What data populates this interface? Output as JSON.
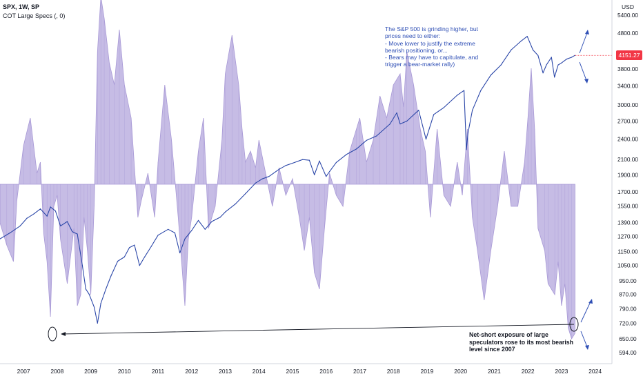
{
  "legend": {
    "main": "SPX, 1W, SP",
    "indicator": "COT Large Specs (, 0)"
  },
  "annotations": {
    "top": "The S&P 500 is grinding higher, but\nprices need to either:\n- Move lower to justify the extreme\nbearish positioning, or...\n- Bears may have to capitulate, and\ntrigger a bear-market rally)",
    "bottom": "Net-short exposure of large\nspeculators rose to its most bearish\nlevel since 2007"
  },
  "last_price": "4151.27",
  "colors": {
    "price_line": "#2a46a8",
    "cot_fill": "#b3a6dc",
    "cot_stroke": "#a899d6",
    "annotation_text": "#2f4fb5",
    "badge": "#f23645"
  },
  "chart_data": [
    {
      "type": "line",
      "series": [
        {
          "name": "SPX",
          "x": [
            2006.3,
            2006.6,
            2006.9,
            2007.1,
            2007.3,
            2007.5,
            2007.7,
            2007.8,
            2007.95,
            2008.1,
            2008.3,
            2008.45,
            2008.6,
            2008.75,
            2008.85,
            2008.95,
            2009.1,
            2009.2,
            2009.3,
            2009.45,
            2009.6,
            2009.8,
            2010.0,
            2010.15,
            2010.3,
            2010.45,
            2010.6,
            2010.8,
            2011.0,
            2011.3,
            2011.5,
            2011.65,
            2011.8,
            2012.0,
            2012.2,
            2012.4,
            2012.6,
            2012.85,
            2013.0,
            2013.3,
            2013.6,
            2013.9,
            2014.1,
            2014.3,
            2014.6,
            2014.8,
            2015.0,
            2015.3,
            2015.5,
            2015.65,
            2015.8,
            2016.0,
            2016.1,
            2016.3,
            2016.6,
            2016.9,
            2017.2,
            2017.5,
            2017.9,
            2018.1,
            2018.2,
            2018.4,
            2018.75,
            2018.97,
            2019.2,
            2019.5,
            2019.9,
            2020.1,
            2020.17,
            2020.22,
            2020.35,
            2020.6,
            2020.9,
            2021.2,
            2021.5,
            2021.8,
            2021.98,
            2022.15,
            2022.3,
            2022.45,
            2022.55,
            2022.7,
            2022.79,
            2022.9,
            2023.0,
            2023.15,
            2023.3,
            2023.4
          ],
          "values": [
            1250,
            1300,
            1360,
            1430,
            1470,
            1520,
            1450,
            1540,
            1500,
            1360,
            1400,
            1310,
            1290,
            1050,
            900,
            870,
            800,
            720,
            820,
            900,
            980,
            1080,
            1110,
            1180,
            1200,
            1050,
            1110,
            1190,
            1280,
            1330,
            1300,
            1140,
            1250,
            1320,
            1410,
            1330,
            1400,
            1440,
            1490,
            1570,
            1680,
            1800,
            1850,
            1880,
            1970,
            2020,
            2050,
            2100,
            2090,
            1900,
            2080,
            1880,
            1940,
            2060,
            2170,
            2250,
            2380,
            2450,
            2650,
            2850,
            2650,
            2700,
            2900,
            2400,
            2820,
            2950,
            3200,
            3300,
            2240,
            2500,
            2900,
            3300,
            3650,
            3900,
            4300,
            4560,
            4700,
            4300,
            4150,
            3700,
            3900,
            4100,
            3600,
            3900,
            3950,
            4050,
            4100,
            4151.27
          ],
          "ylim": [
            570,
            5700
          ],
          "scale": "log"
        }
      ],
      "y_ticks": [
        "5400.00",
        "4800.00",
        "4151.27",
        "3800.00",
        "3400.00",
        "3000.00",
        "2700.00",
        "2400.00",
        "2100.00",
        "1900.00",
        "1700.00",
        "1550.00",
        "1390.00",
        "1270.00",
        "1150.00",
        "1050.00",
        "950.00",
        "870.00",
        "790.00",
        "720.00",
        "650.00",
        "594.00"
      ],
      "y_unit": "USD",
      "x_ticks": [
        "2007",
        "2008",
        "2009",
        "2010",
        "2011",
        "2012",
        "2013",
        "2014",
        "2015",
        "2016",
        "2017",
        "2018",
        "2019",
        "2020",
        "2021",
        "2022",
        "2023",
        "2024"
      ],
      "xlim": [
        2006.3,
        2024.5
      ]
    },
    {
      "type": "area",
      "series": [
        {
          "name": "COT Large Specs",
          "x": [
            2006.3,
            2006.5,
            2006.7,
            2006.8,
            2007.0,
            2007.2,
            2007.4,
            2007.5,
            2007.6,
            2007.7,
            2007.8,
            2007.9,
            2008.0,
            2008.1,
            2008.3,
            2008.5,
            2008.6,
            2008.7,
            2008.8,
            2008.9,
            2009.0,
            2009.1,
            2009.2,
            2009.3,
            2009.4,
            2009.55,
            2009.7,
            2009.85,
            2010.0,
            2010.2,
            2010.4,
            2010.5,
            2010.7,
            2010.9,
            2011.0,
            2011.2,
            2011.4,
            2011.6,
            2011.7,
            2011.8,
            2011.9,
            2012.0,
            2012.2,
            2012.35,
            2012.5,
            2012.7,
            2012.9,
            2013.0,
            2013.2,
            2013.4,
            2013.5,
            2013.6,
            2013.75,
            2013.9,
            2014.0,
            2014.2,
            2014.4,
            2014.6,
            2014.8,
            2015.0,
            2015.2,
            2015.35,
            2015.5,
            2015.65,
            2015.8,
            2015.95,
            2016.1,
            2016.3,
            2016.5,
            2016.7,
            2016.9,
            2017.0,
            2017.2,
            2017.4,
            2017.6,
            2017.8,
            2018.0,
            2018.2,
            2018.3,
            2018.4,
            2018.6,
            2018.8,
            2018.95,
            2019.1,
            2019.3,
            2019.5,
            2019.7,
            2019.9,
            2020.05,
            2020.2,
            2020.35,
            2020.5,
            2020.7,
            2020.9,
            2021.1,
            2021.3,
            2021.5,
            2021.7,
            2021.9,
            2022.0,
            2022.1,
            2022.2,
            2022.3,
            2022.5,
            2022.6,
            2022.8,
            2022.9,
            2023.0,
            2023.1,
            2023.2,
            2023.3,
            2023.4
          ],
          "values": [
            -0.35,
            -0.55,
            -0.7,
            -0.15,
            0.35,
            0.6,
            0.1,
            0.2,
            -0.45,
            -0.7,
            -1.2,
            -0.2,
            -0.1,
            -0.5,
            -0.9,
            -0.4,
            -1.1,
            -1.0,
            -0.3,
            -0.6,
            -1.0,
            -0.2,
            1.2,
            1.7,
            1.5,
            1.1,
            0.9,
            1.4,
            0.9,
            0.6,
            -0.3,
            -0.15,
            0.1,
            -0.3,
            0.2,
            0.9,
            0.4,
            -0.3,
            -0.7,
            -1.1,
            -0.5,
            -0.3,
            0.3,
            0.6,
            -0.4,
            -0.2,
            0.4,
            1.0,
            1.35,
            0.9,
            0.5,
            0.2,
            0.3,
            0.15,
            0.4,
            0.1,
            -0.2,
            0.15,
            -0.1,
            0.05,
            -0.3,
            -0.6,
            -0.3,
            -0.8,
            -0.95,
            -0.4,
            0.1,
            -0.1,
            -0.2,
            0.3,
            0.5,
            0.6,
            0.2,
            0.4,
            0.8,
            0.6,
            0.9,
            1.0,
            0.7,
            1.2,
            0.9,
            0.5,
            0.3,
            -0.3,
            0.5,
            -0.1,
            -0.2,
            0.2,
            -0.1,
            0.5,
            -0.3,
            -0.6,
            -1.05,
            -0.6,
            -0.2,
            0.3,
            -0.2,
            -0.2,
            0.2,
            0.6,
            1.05,
            0.5,
            -0.4,
            -0.6,
            -0.9,
            -1.0,
            -0.7,
            -1.1,
            -0.9,
            -1.3,
            -1.4,
            -1.35
          ]
        }
      ],
      "baseline": 0
    }
  ]
}
